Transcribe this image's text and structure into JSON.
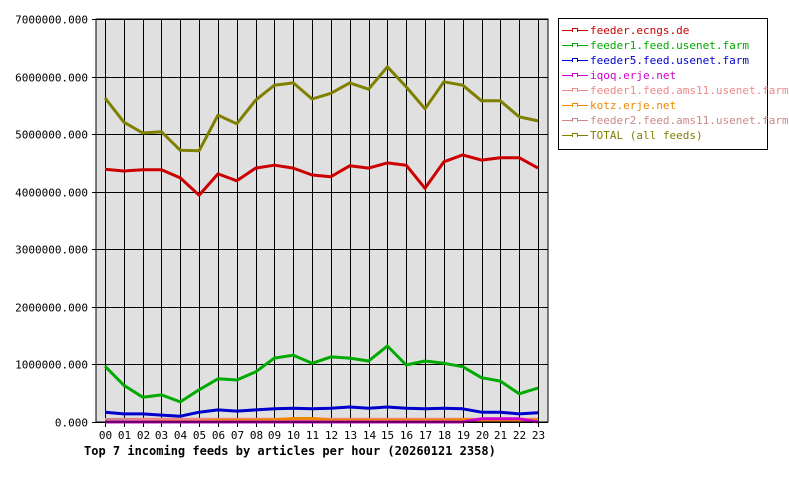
{
  "chart_data": {
    "type": "line",
    "title": "Top 7 incoming feeds by articles per hour (20260121 2358)",
    "xlabel": "",
    "ylabel": "",
    "ylim": [
      0,
      7000000
    ],
    "yticks": [
      "0.000",
      "1000000.000",
      "2000000.000",
      "3000000.000",
      "4000000.000",
      "5000000.000",
      "6000000.000",
      "7000000.000"
    ],
    "grid": true,
    "legend_position": "right",
    "categories": [
      "00",
      "01",
      "02",
      "03",
      "04",
      "05",
      "06",
      "07",
      "08",
      "09",
      "10",
      "11",
      "12",
      "13",
      "14",
      "15",
      "16",
      "17",
      "18",
      "19",
      "20",
      "21",
      "22",
      "23"
    ],
    "series": [
      {
        "name": "feeder.ecngs.de",
        "color": "#cc0000",
        "values": [
          4390000,
          4360000,
          4380000,
          4380000,
          4240000,
          3940000,
          4310000,
          4190000,
          4410000,
          4460000,
          4410000,
          4290000,
          4260000,
          4450000,
          4410000,
          4500000,
          4460000,
          4060000,
          4520000,
          4640000,
          4550000,
          4590000,
          4590000,
          4410000
        ]
      },
      {
        "name": "feeder1.feed.usenet.farm",
        "color": "#00aa00",
        "values": [
          970000,
          640000,
          430000,
          470000,
          350000,
          560000,
          750000,
          730000,
          870000,
          1110000,
          1160000,
          1020000,
          1130000,
          1110000,
          1060000,
          1320000,
          990000,
          1060000,
          1020000,
          960000,
          770000,
          710000,
          490000,
          590000
        ]
      },
      {
        "name": "feeder5.feed.usenet.farm",
        "color": "#0000cc",
        "values": [
          170000,
          140000,
          140000,
          120000,
          100000,
          170000,
          210000,
          190000,
          210000,
          230000,
          240000,
          230000,
          240000,
          260000,
          240000,
          260000,
          240000,
          230000,
          240000,
          230000,
          170000,
          170000,
          140000,
          160000
        ]
      },
      {
        "name": "iqoq.erje.net",
        "color": "#cc00cc",
        "values": [
          0,
          0,
          0,
          0,
          0,
          0,
          0,
          0,
          0,
          0,
          0,
          0,
          0,
          0,
          0,
          0,
          0,
          0,
          0,
          0,
          55000,
          55000,
          55000,
          0
        ]
      },
      {
        "name": "feeder1.feed.ams11.usenet.farm",
        "color": "#ee8888",
        "values": [
          0,
          0,
          45000,
          45000,
          45000,
          45000,
          45000,
          45000,
          45000,
          45000,
          45000,
          60000,
          45000,
          45000,
          45000,
          45000,
          45000,
          45000,
          45000,
          45000,
          45000,
          45000,
          45000,
          45000
        ]
      },
      {
        "name": "kotz.erje.net",
        "color": "#ee8800",
        "values": [
          0,
          0,
          0,
          10000,
          10000,
          10000,
          30000,
          30000,
          30000,
          40000,
          60000,
          60000,
          30000,
          30000,
          30000,
          30000,
          30000,
          30000,
          30000,
          40000,
          30000,
          30000,
          30000,
          40000
        ]
      },
      {
        "name": "feeder2.feed.ams11.usenet.farm",
        "color": "#cc8888",
        "values": [
          45000,
          45000,
          45000,
          45000,
          45000,
          45000,
          45000,
          45000,
          45000,
          45000,
          45000,
          45000,
          45000,
          45000,
          45000,
          45000,
          45000,
          45000,
          45000,
          45000,
          45000,
          45000,
          45000,
          45000
        ]
      },
      {
        "name": "TOTAL (all feeds)",
        "color": "#808000",
        "values": [
          5630000,
          5210000,
          5020000,
          5040000,
          4720000,
          4710000,
          5330000,
          5180000,
          5590000,
          5850000,
          5890000,
          5610000,
          5710000,
          5890000,
          5780000,
          6170000,
          5820000,
          5440000,
          5910000,
          5850000,
          5580000,
          5580000,
          5300000,
          5230000
        ]
      }
    ]
  },
  "legend": {
    "items": [
      {
        "label": "feeder.ecngs.de",
        "color": "#cc0000"
      },
      {
        "label": "feeder1.feed.usenet.farm",
        "color": "#00aa00"
      },
      {
        "label": "feeder5.feed.usenet.farm",
        "color": "#0000cc"
      },
      {
        "label": "iqoq.erje.net",
        "color": "#cc00cc"
      },
      {
        "label": "feeder1.feed.ams11.usenet.farm",
        "color": "#ee8888"
      },
      {
        "label": "kotz.erje.net",
        "color": "#ee8800"
      },
      {
        "label": "feeder2.feed.ams11.usenet.farm",
        "color": "#cc8888"
      },
      {
        "label": "TOTAL (all feeds)",
        "color": "#808000"
      }
    ]
  },
  "caption": "Top 7 incoming feeds by articles per hour (20260121 2358)"
}
